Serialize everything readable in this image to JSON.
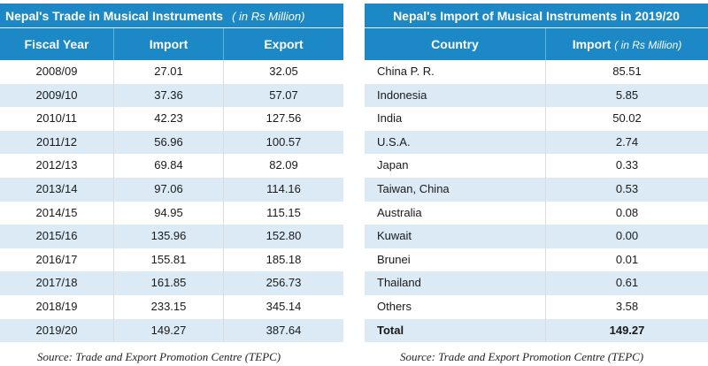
{
  "trade_table": {
    "title": "Nepal's Trade in Musical Instruments",
    "unit": "( in Rs Million)",
    "headers": {
      "fiscal_year": "Fiscal Year",
      "import": "Import",
      "export": "Export"
    },
    "rows": [
      {
        "year": "2008/09",
        "import": "27.01",
        "export": "32.05"
      },
      {
        "year": "2009/10",
        "import": "37.36",
        "export": "57.07"
      },
      {
        "year": "2010/11",
        "import": "42.23",
        "export": "127.56"
      },
      {
        "year": "2011/12",
        "import": "56.96",
        "export": "100.57"
      },
      {
        "year": "2012/13",
        "import": "69.84",
        "export": "82.09"
      },
      {
        "year": "2013/14",
        "import": "97.06",
        "export": "114.16"
      },
      {
        "year": "2014/15",
        "import": "94.95",
        "export": "115.15"
      },
      {
        "year": "2015/16",
        "import": "135.96",
        "export": "152.80"
      },
      {
        "year": "2016/17",
        "import": "155.81",
        "export": "185.18"
      },
      {
        "year": "2017/18",
        "import": "161.85",
        "export": "256.73"
      },
      {
        "year": "2018/19",
        "import": "233.15",
        "export": "345.14"
      },
      {
        "year": "2019/20",
        "import": "149.27",
        "export": "387.64"
      }
    ],
    "source": "Source: Trade and Export Promotion Centre (TEPC)"
  },
  "import_table": {
    "title": "Nepal's Import of Musical Instruments in 2019/20",
    "headers": {
      "country": "Country",
      "import": "Import",
      "import_unit": "( in Rs Million)"
    },
    "rows": [
      {
        "country": "China P. R.",
        "import": "85.51"
      },
      {
        "country": "Indonesia",
        "import": "5.85"
      },
      {
        "country": "India",
        "import": "50.02"
      },
      {
        "country": "U.S.A.",
        "import": "2.74"
      },
      {
        "country": "Japan",
        "import": "0.33"
      },
      {
        "country": "Taiwan, China",
        "import": "0.53"
      },
      {
        "country": "Australia",
        "import": "0.08"
      },
      {
        "country": "Kuwait",
        "import": "0.00"
      },
      {
        "country": "Brunei",
        "import": "0.01"
      },
      {
        "country": "Thailand",
        "import": "0.61"
      },
      {
        "country": "Others",
        "import": "3.58"
      }
    ],
    "total": {
      "label": "Total",
      "import": "149.27"
    },
    "source": "Source: Trade and Export Promotion Centre (TEPC)"
  }
}
